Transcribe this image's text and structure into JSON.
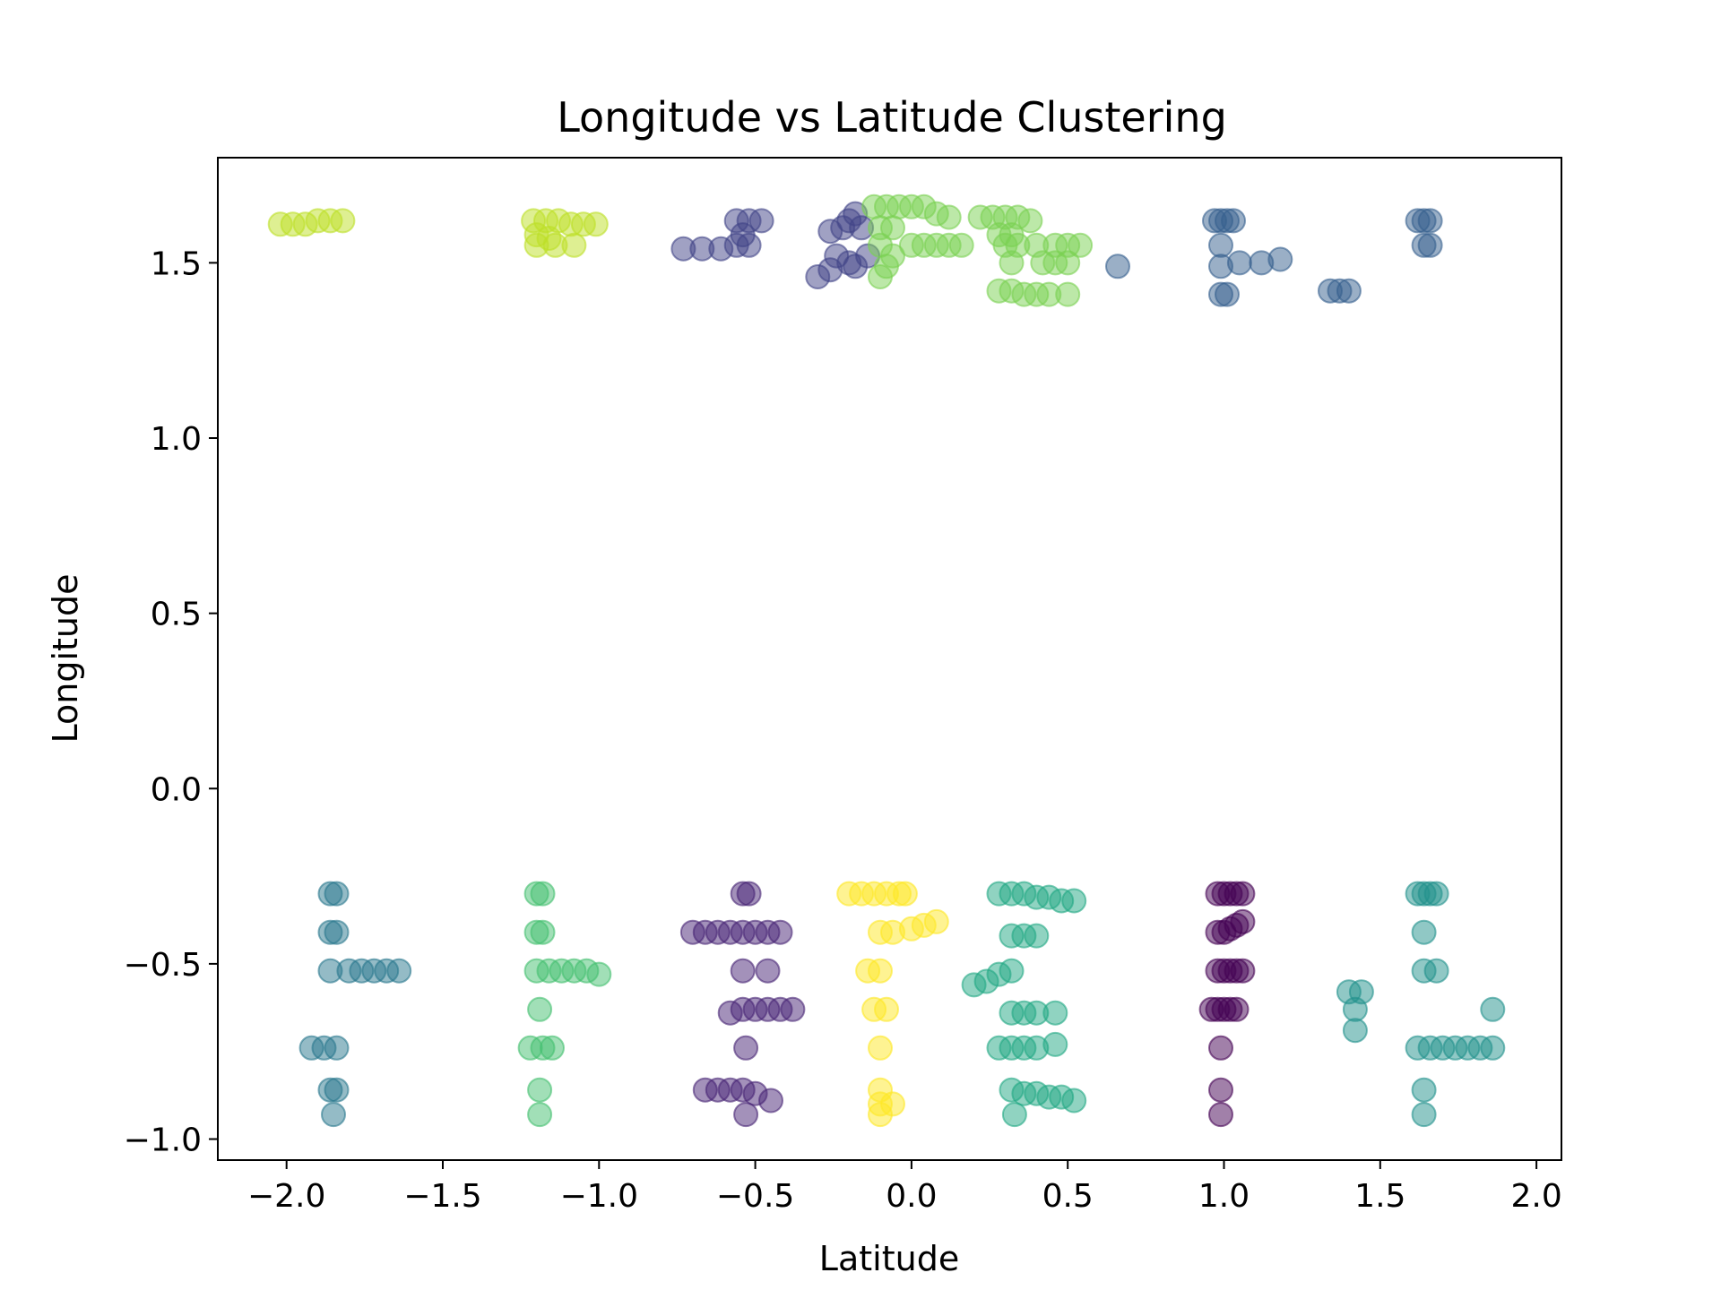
{
  "chart_data": {
    "type": "scatter",
    "title": "Longitude vs Latitude Clustering",
    "xlabel": "Latitude",
    "ylabel": "Longitude",
    "xlim": [
      -2.22,
      2.08
    ],
    "ylim": [
      -1.06,
      1.8
    ],
    "xticks": [
      -2.0,
      -1.5,
      -1.0,
      -0.5,
      0.0,
      0.5,
      1.0,
      1.5,
      2.0
    ],
    "xtick_labels": [
      "−2.0",
      "−1.5",
      "−1.0",
      "−0.5",
      "0.0",
      "0.5",
      "1.0",
      "1.5",
      "2.0"
    ],
    "yticks": [
      -1.0,
      -0.5,
      0.0,
      0.5,
      1.0,
      1.5
    ],
    "ytick_labels": [
      "−1.0",
      "−0.5",
      "0.0",
      "0.5",
      "1.0",
      "1.5"
    ],
    "grid": false,
    "legend": "none",
    "marker_alpha": 0.5,
    "colormap": "viridis",
    "clusters": [
      {
        "color": "#440154",
        "points": [
          [
            0.98,
            -0.3
          ],
          [
            1.0,
            -0.3
          ],
          [
            1.02,
            -0.3
          ],
          [
            1.04,
            -0.3
          ],
          [
            1.06,
            -0.3
          ],
          [
            0.98,
            -0.41
          ],
          [
            1.0,
            -0.41
          ],
          [
            1.02,
            -0.4
          ],
          [
            1.04,
            -0.39
          ],
          [
            1.06,
            -0.38
          ],
          [
            0.98,
            -0.52
          ],
          [
            1.0,
            -0.52
          ],
          [
            1.02,
            -0.52
          ],
          [
            1.04,
            -0.52
          ],
          [
            1.06,
            -0.52
          ],
          [
            0.96,
            -0.63
          ],
          [
            0.98,
            -0.63
          ],
          [
            1.0,
            -0.63
          ],
          [
            1.02,
            -0.63
          ],
          [
            1.04,
            -0.63
          ],
          [
            0.99,
            -0.74
          ],
          [
            0.99,
            -0.86
          ],
          [
            0.99,
            -0.93
          ]
        ]
      },
      {
        "color": "#482475",
        "points": [
          [
            -0.7,
            -0.41
          ],
          [
            -0.66,
            -0.41
          ],
          [
            -0.62,
            -0.41
          ],
          [
            -0.58,
            -0.41
          ],
          [
            -0.54,
            -0.41
          ],
          [
            -0.5,
            -0.41
          ],
          [
            -0.46,
            -0.41
          ],
          [
            -0.42,
            -0.41
          ],
          [
            -0.54,
            -0.3
          ],
          [
            -0.52,
            -0.3
          ],
          [
            -0.54,
            -0.52
          ],
          [
            -0.46,
            -0.52
          ],
          [
            -0.58,
            -0.64
          ],
          [
            -0.54,
            -0.63
          ],
          [
            -0.5,
            -0.63
          ],
          [
            -0.46,
            -0.63
          ],
          [
            -0.42,
            -0.63
          ],
          [
            -0.38,
            -0.63
          ],
          [
            -0.53,
            -0.74
          ],
          [
            -0.66,
            -0.86
          ],
          [
            -0.62,
            -0.86
          ],
          [
            -0.58,
            -0.86
          ],
          [
            -0.54,
            -0.86
          ],
          [
            -0.5,
            -0.87
          ],
          [
            -0.45,
            -0.89
          ],
          [
            -0.53,
            -0.93
          ]
        ]
      },
      {
        "color": "#414487",
        "points": [
          [
            -0.73,
            1.54
          ],
          [
            -0.67,
            1.54
          ],
          [
            -0.61,
            1.54
          ],
          [
            -0.56,
            1.55
          ],
          [
            -0.52,
            1.55
          ],
          [
            -0.56,
            1.62
          ],
          [
            -0.52,
            1.62
          ],
          [
            -0.48,
            1.62
          ],
          [
            -0.54,
            1.58
          ],
          [
            -0.26,
            1.59
          ],
          [
            -0.22,
            1.6
          ],
          [
            -0.2,
            1.62
          ],
          [
            -0.18,
            1.64
          ],
          [
            -0.16,
            1.6
          ],
          [
            -0.24,
            1.52
          ],
          [
            -0.2,
            1.5
          ],
          [
            -0.26,
            1.48
          ],
          [
            -0.3,
            1.46
          ],
          [
            -0.18,
            1.49
          ],
          [
            -0.14,
            1.52
          ]
        ]
      },
      {
        "color": "#355f8d",
        "points": [
          [
            0.97,
            1.62
          ],
          [
            0.99,
            1.62
          ],
          [
            1.01,
            1.62
          ],
          [
            1.03,
            1.62
          ],
          [
            0.99,
            1.55
          ],
          [
            0.99,
            1.49
          ],
          [
            0.99,
            1.41
          ],
          [
            1.01,
            1.41
          ],
          [
            1.05,
            1.5
          ],
          [
            1.12,
            1.5
          ],
          [
            1.18,
            1.51
          ],
          [
            0.66,
            1.49
          ],
          [
            1.34,
            1.42
          ],
          [
            1.37,
            1.42
          ],
          [
            1.4,
            1.42
          ],
          [
            1.62,
            1.62
          ],
          [
            1.64,
            1.62
          ],
          [
            1.66,
            1.62
          ],
          [
            1.64,
            1.55
          ],
          [
            1.66,
            1.55
          ]
        ]
      },
      {
        "color": "#2a788e",
        "points": [
          [
            -1.86,
            -0.3
          ],
          [
            -1.84,
            -0.3
          ],
          [
            -1.86,
            -0.41
          ],
          [
            -1.84,
            -0.41
          ],
          [
            -1.86,
            -0.52
          ],
          [
            -1.8,
            -0.52
          ],
          [
            -1.76,
            -0.52
          ],
          [
            -1.72,
            -0.52
          ],
          [
            -1.68,
            -0.52
          ],
          [
            -1.64,
            -0.52
          ],
          [
            -1.92,
            -0.74
          ],
          [
            -1.88,
            -0.74
          ],
          [
            -1.84,
            -0.74
          ],
          [
            -1.86,
            -0.86
          ],
          [
            -1.84,
            -0.86
          ],
          [
            -1.85,
            -0.93
          ]
        ]
      },
      {
        "color": "#21918c",
        "points": [
          [
            1.4,
            -0.58
          ],
          [
            1.44,
            -0.58
          ],
          [
            1.42,
            -0.63
          ],
          [
            1.42,
            -0.69
          ],
          [
            1.62,
            -0.3
          ],
          [
            1.64,
            -0.3
          ],
          [
            1.66,
            -0.3
          ],
          [
            1.68,
            -0.3
          ],
          [
            1.64,
            -0.41
          ],
          [
            1.64,
            -0.52
          ],
          [
            1.68,
            -0.52
          ],
          [
            1.62,
            -0.74
          ],
          [
            1.66,
            -0.74
          ],
          [
            1.7,
            -0.74
          ],
          [
            1.74,
            -0.74
          ],
          [
            1.78,
            -0.74
          ],
          [
            1.82,
            -0.74
          ],
          [
            1.86,
            -0.74
          ],
          [
            1.86,
            -0.63
          ],
          [
            1.64,
            -0.86
          ],
          [
            1.64,
            -0.93
          ]
        ]
      },
      {
        "color": "#22a884",
        "points": [
          [
            0.28,
            -0.3
          ],
          [
            0.32,
            -0.3
          ],
          [
            0.36,
            -0.3
          ],
          [
            0.4,
            -0.31
          ],
          [
            0.44,
            -0.31
          ],
          [
            0.48,
            -0.32
          ],
          [
            0.52,
            -0.32
          ],
          [
            0.32,
            -0.42
          ],
          [
            0.36,
            -0.42
          ],
          [
            0.4,
            -0.42
          ],
          [
            0.2,
            -0.56
          ],
          [
            0.24,
            -0.55
          ],
          [
            0.28,
            -0.53
          ],
          [
            0.32,
            -0.52
          ],
          [
            0.32,
            -0.64
          ],
          [
            0.36,
            -0.64
          ],
          [
            0.4,
            -0.64
          ],
          [
            0.46,
            -0.64
          ],
          [
            0.28,
            -0.74
          ],
          [
            0.32,
            -0.74
          ],
          [
            0.36,
            -0.74
          ],
          [
            0.4,
            -0.74
          ],
          [
            0.46,
            -0.73
          ],
          [
            0.32,
            -0.86
          ],
          [
            0.36,
            -0.87
          ],
          [
            0.4,
            -0.87
          ],
          [
            0.44,
            -0.88
          ],
          [
            0.48,
            -0.88
          ],
          [
            0.52,
            -0.89
          ],
          [
            0.33,
            -0.93
          ]
        ]
      },
      {
        "color": "#44bf70",
        "points": [
          [
            -1.2,
            -0.3
          ],
          [
            -1.18,
            -0.3
          ],
          [
            -1.2,
            -0.41
          ],
          [
            -1.18,
            -0.41
          ],
          [
            -1.2,
            -0.52
          ],
          [
            -1.16,
            -0.52
          ],
          [
            -1.12,
            -0.52
          ],
          [
            -1.08,
            -0.52
          ],
          [
            -1.04,
            -0.52
          ],
          [
            -1.0,
            -0.53
          ],
          [
            -1.19,
            -0.63
          ],
          [
            -1.22,
            -0.74
          ],
          [
            -1.18,
            -0.74
          ],
          [
            -1.15,
            -0.74
          ],
          [
            -1.19,
            -0.86
          ],
          [
            -1.19,
            -0.93
          ]
        ]
      },
      {
        "color": "#7ad151",
        "points": [
          [
            -0.12,
            1.66
          ],
          [
            -0.08,
            1.66
          ],
          [
            -0.04,
            1.66
          ],
          [
            0.0,
            1.66
          ],
          [
            0.04,
            1.66
          ],
          [
            0.08,
            1.64
          ],
          [
            0.12,
            1.63
          ],
          [
            -0.1,
            1.6
          ],
          [
            -0.06,
            1.6
          ],
          [
            -0.1,
            1.55
          ],
          [
            -0.06,
            1.52
          ],
          [
            -0.08,
            1.49
          ],
          [
            -0.1,
            1.46
          ],
          [
            0.0,
            1.55
          ],
          [
            0.04,
            1.55
          ],
          [
            0.08,
            1.55
          ],
          [
            0.12,
            1.55
          ],
          [
            0.16,
            1.55
          ],
          [
            0.22,
            1.63
          ],
          [
            0.26,
            1.63
          ],
          [
            0.3,
            1.63
          ],
          [
            0.34,
            1.63
          ],
          [
            0.38,
            1.62
          ],
          [
            0.28,
            1.58
          ],
          [
            0.32,
            1.58
          ],
          [
            0.3,
            1.55
          ],
          [
            0.34,
            1.55
          ],
          [
            0.4,
            1.55
          ],
          [
            0.46,
            1.55
          ],
          [
            0.5,
            1.55
          ],
          [
            0.54,
            1.55
          ],
          [
            0.32,
            1.5
          ],
          [
            0.42,
            1.5
          ],
          [
            0.46,
            1.5
          ],
          [
            0.5,
            1.5
          ],
          [
            0.28,
            1.42
          ],
          [
            0.32,
            1.42
          ],
          [
            0.36,
            1.41
          ],
          [
            0.4,
            1.41
          ],
          [
            0.44,
            1.41
          ],
          [
            0.5,
            1.41
          ]
        ]
      },
      {
        "color": "#bddf26",
        "points": [
          [
            -2.02,
            1.61
          ],
          [
            -1.98,
            1.61
          ],
          [
            -1.94,
            1.61
          ],
          [
            -1.9,
            1.62
          ],
          [
            -1.86,
            1.62
          ],
          [
            -1.82,
            1.62
          ],
          [
            -1.21,
            1.62
          ],
          [
            -1.17,
            1.62
          ],
          [
            -1.13,
            1.62
          ],
          [
            -1.09,
            1.61
          ],
          [
            -1.05,
            1.61
          ],
          [
            -1.01,
            1.61
          ],
          [
            -1.2,
            1.58
          ],
          [
            -1.16,
            1.57
          ],
          [
            -1.2,
            1.55
          ],
          [
            -1.14,
            1.55
          ],
          [
            -1.08,
            1.55
          ]
        ]
      },
      {
        "color": "#fde725",
        "points": [
          [
            -0.2,
            -0.3
          ],
          [
            -0.16,
            -0.3
          ],
          [
            -0.12,
            -0.3
          ],
          [
            -0.08,
            -0.3
          ],
          [
            -0.04,
            -0.3
          ],
          [
            -0.02,
            -0.3
          ],
          [
            -0.1,
            -0.41
          ],
          [
            -0.06,
            -0.41
          ],
          [
            0.0,
            -0.4
          ],
          [
            0.04,
            -0.39
          ],
          [
            0.08,
            -0.38
          ],
          [
            -0.14,
            -0.52
          ],
          [
            -0.1,
            -0.52
          ],
          [
            -0.12,
            -0.63
          ],
          [
            -0.08,
            -0.63
          ],
          [
            -0.1,
            -0.74
          ],
          [
            -0.1,
            -0.86
          ],
          [
            -0.1,
            -0.9
          ],
          [
            -0.06,
            -0.9
          ],
          [
            -0.1,
            -0.93
          ]
        ]
      }
    ]
  }
}
